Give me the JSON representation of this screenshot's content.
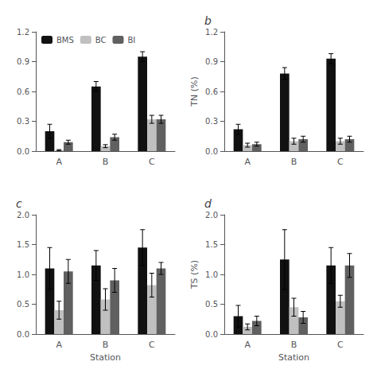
{
  "chart_data": [
    {
      "type": "bar",
      "categories": [
        "A",
        "B",
        "C"
      ],
      "series": [
        {
          "name": "BMS",
          "color": "#111111",
          "values": [
            0.2,
            0.65,
            0.95
          ],
          "errors": [
            0.07,
            0.05,
            0.05
          ]
        },
        {
          "name": "BC",
          "color": "#c0c0c0",
          "values": [
            0.01,
            0.05,
            0.32
          ],
          "errors": [
            0.005,
            0.015,
            0.04
          ]
        },
        {
          "name": "BI",
          "color": "#606060",
          "values": [
            0.09,
            0.14,
            0.32
          ],
          "errors": [
            0.02,
            0.03,
            0.04
          ]
        }
      ],
      "ylim": [
        0,
        1.2
      ],
      "yticks": [
        {
          "value": 0,
          "label": "0.0"
        },
        0.3,
        0.6,
        0.9,
        1.2
      ],
      "grid": false,
      "legend": "upper left"
    },
    {
      "type": "bar",
      "categories": [
        "A",
        "B",
        "C"
      ],
      "ylabel": "TN (%)",
      "annotations": [
        "b"
      ],
      "series": [
        {
          "name": "BMS",
          "color": "#111111",
          "values": [
            0.22,
            0.78,
            0.93
          ],
          "errors": [
            0.05,
            0.06,
            0.05
          ]
        },
        {
          "name": "BC",
          "color": "#c0c0c0",
          "values": [
            0.06,
            0.1,
            0.1
          ],
          "errors": [
            0.02,
            0.03,
            0.03
          ]
        },
        {
          "name": "BI",
          "color": "#606060",
          "values": [
            0.07,
            0.12,
            0.12
          ],
          "errors": [
            0.02,
            0.03,
            0.03
          ]
        }
      ],
      "ylim": [
        0,
        1.2
      ],
      "yticks": [
        {
          "value": 0,
          "label": "0.0"
        },
        0.3,
        0.6,
        0.9,
        1.2
      ],
      "grid": false
    },
    {
      "type": "bar",
      "categories": [
        "A",
        "B",
        "C"
      ],
      "xlabel": "Station",
      "annotations": [
        "c"
      ],
      "series": [
        {
          "name": "BMS",
          "color": "#111111",
          "values": [
            1.1,
            1.15,
            1.45
          ],
          "errors": [
            0.35,
            0.25,
            0.3
          ]
        },
        {
          "name": "BC",
          "color": "#c0c0c0",
          "values": [
            0.4,
            0.58,
            0.82
          ],
          "errors": [
            0.15,
            0.18,
            0.2
          ]
        },
        {
          "name": "BI",
          "color": "#606060",
          "values": [
            1.05,
            0.9,
            1.1
          ],
          "errors": [
            0.2,
            0.2,
            0.1
          ]
        }
      ],
      "ylim": [
        0,
        2.0
      ],
      "yticks": [
        {
          "value": 0,
          "label": "0.0"
        },
        0.5,
        {
          "value": 1,
          "label": "1.0"
        },
        1.5,
        {
          "value": 2,
          "label": "2.0"
        }
      ],
      "grid": false
    },
    {
      "type": "bar",
      "categories": [
        "A",
        "B",
        "C"
      ],
      "xlabel": "Station",
      "ylabel": "TS (%)",
      "annotations": [
        "d"
      ],
      "series": [
        {
          "name": "BMS",
          "color": "#111111",
          "values": [
            0.3,
            1.25,
            1.15
          ],
          "errors": [
            0.18,
            0.5,
            0.3
          ]
        },
        {
          "name": "BC",
          "color": "#c0c0c0",
          "values": [
            0.12,
            0.45,
            0.55
          ],
          "errors": [
            0.05,
            0.15,
            0.1
          ]
        },
        {
          "name": "BI",
          "color": "#606060",
          "values": [
            0.22,
            0.28,
            1.15
          ],
          "errors": [
            0.08,
            0.1,
            0.2
          ]
        }
      ],
      "ylim": [
        0,
        2.0
      ],
      "yticks": [
        {
          "value": 0,
          "label": "0.0"
        },
        0.5,
        {
          "value": 1,
          "label": "1.0"
        },
        1.5,
        {
          "value": 2,
          "label": "2.0"
        }
      ],
      "grid": false
    }
  ]
}
